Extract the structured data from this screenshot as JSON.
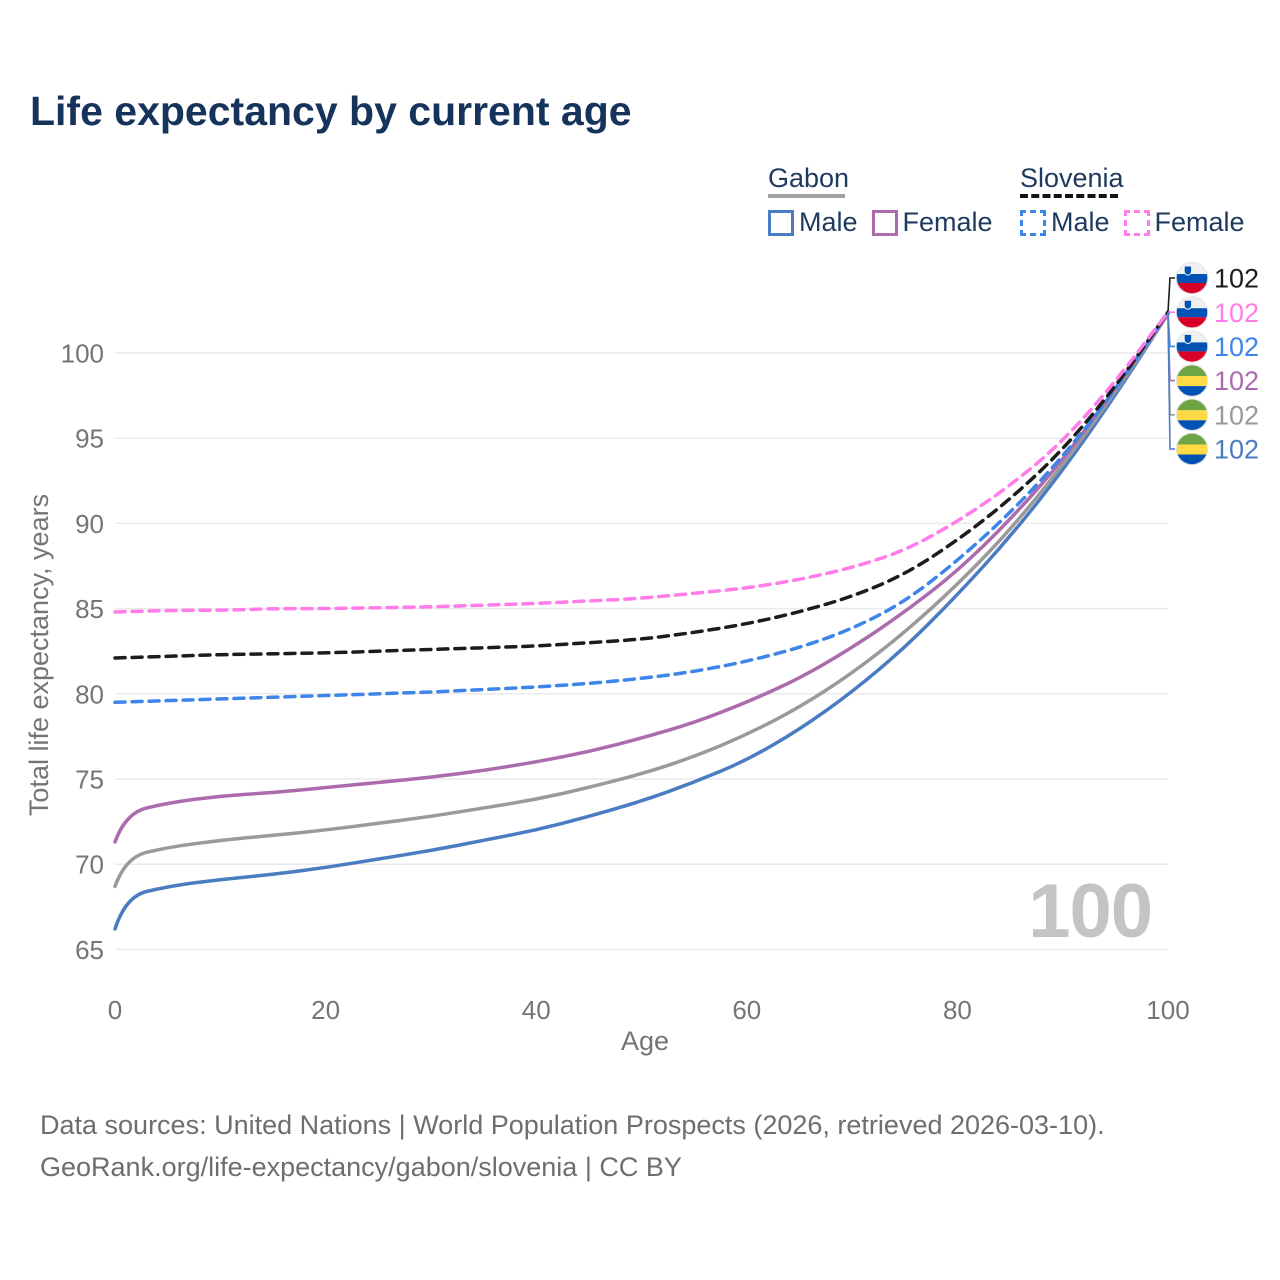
{
  "title": "Life expectancy by current age",
  "legend": {
    "gabon": {
      "title": "Gabon",
      "male": "Male",
      "female": "Female"
    },
    "slovenia": {
      "title": "Slovenia",
      "male": "Male",
      "female": "Female"
    }
  },
  "axes": {
    "x_label": "Age",
    "y_label": "Total life expectancy, years"
  },
  "watermark": "100",
  "footer": {
    "line1": "Data sources: United Nations | World Population Prospects (2026, retrieved 2026-03-10).",
    "line2": "GeoRank.org/life-expectancy/gabon/slovenia | CC BY"
  },
  "colors": {
    "title_navy": "#16335b",
    "axis_gray": "#757575",
    "gridline": "#eaeaea",
    "watermark_gray": "#c4c4c4",
    "gabon_male": "#4a7cc2",
    "gabon_female": "#ab6bad",
    "gabon_total": "#9a9a9a",
    "slovenia_male": "#3d85e9",
    "slovenia_female": "#ff7ce9",
    "slovenia_total": "#1c1c1c"
  },
  "chart_data": {
    "type": "line",
    "title": "Life expectancy by current age",
    "xlabel": "Age",
    "ylabel": "Total life expectancy, years",
    "x_ticks": [
      0,
      20,
      40,
      60,
      80,
      100
    ],
    "y_ticks": [
      65,
      70,
      75,
      80,
      85,
      90,
      95,
      100
    ],
    "xlim": [
      0,
      100
    ],
    "ylim": [
      63.5,
      103.5
    ],
    "grid": "horizontal",
    "legend_position": "top-right",
    "series": [
      {
        "name": "gabon_male",
        "country": "Gabon",
        "sex": "Male",
        "color": "#4a7cc2",
        "dashed": false,
        "points": [
          [
            0,
            66.2
          ],
          [
            1,
            68.1
          ],
          [
            5,
            68.7
          ],
          [
            10,
            69.1
          ],
          [
            15,
            69.4
          ],
          [
            20,
            69.8
          ],
          [
            25,
            70.3
          ],
          [
            30,
            70.8
          ],
          [
            35,
            71.4
          ],
          [
            40,
            72.0
          ],
          [
            45,
            72.8
          ],
          [
            50,
            73.7
          ],
          [
            55,
            74.8
          ],
          [
            60,
            76.1
          ],
          [
            65,
            77.9
          ],
          [
            70,
            80.1
          ],
          [
            75,
            82.7
          ],
          [
            80,
            85.8
          ],
          [
            85,
            89.2
          ],
          [
            90,
            93.1
          ],
          [
            95,
            97.5
          ],
          [
            100,
            102.3
          ]
        ]
      },
      {
        "name": "gabon_total",
        "country": "Gabon",
        "sex": "Both",
        "color": "#9a9a9a",
        "dashed": false,
        "points": [
          [
            0,
            68.7
          ],
          [
            1,
            70.4
          ],
          [
            5,
            71.0
          ],
          [
            10,
            71.4
          ],
          [
            15,
            71.7
          ],
          [
            20,
            72.0
          ],
          [
            25,
            72.4
          ],
          [
            30,
            72.8
          ],
          [
            35,
            73.3
          ],
          [
            40,
            73.8
          ],
          [
            45,
            74.5
          ],
          [
            50,
            75.3
          ],
          [
            55,
            76.3
          ],
          [
            60,
            77.6
          ],
          [
            65,
            79.2
          ],
          [
            70,
            81.2
          ],
          [
            75,
            83.6
          ],
          [
            80,
            86.4
          ],
          [
            85,
            89.6
          ],
          [
            90,
            93.4
          ],
          [
            95,
            97.7
          ],
          [
            100,
            102.3
          ]
        ]
      },
      {
        "name": "gabon_female",
        "country": "Gabon",
        "sex": "Female",
        "color": "#ab6bad",
        "dashed": false,
        "points": [
          [
            0,
            71.3
          ],
          [
            1,
            73.0
          ],
          [
            5,
            73.6
          ],
          [
            10,
            74.0
          ],
          [
            15,
            74.2
          ],
          [
            20,
            74.5
          ],
          [
            25,
            74.8
          ],
          [
            30,
            75.1
          ],
          [
            35,
            75.5
          ],
          [
            40,
            76.0
          ],
          [
            45,
            76.6
          ],
          [
            50,
            77.4
          ],
          [
            55,
            78.3
          ],
          [
            60,
            79.5
          ],
          [
            65,
            80.9
          ],
          [
            70,
            82.7
          ],
          [
            75,
            84.8
          ],
          [
            80,
            87.2
          ],
          [
            85,
            90.2
          ],
          [
            90,
            93.7
          ],
          [
            95,
            97.9
          ],
          [
            100,
            102.3
          ]
        ]
      },
      {
        "name": "slovenia_male",
        "country": "Slovenia",
        "sex": "Male",
        "color": "#3d85e9",
        "dashed": true,
        "points": [
          [
            0,
            79.5
          ],
          [
            5,
            79.6
          ],
          [
            10,
            79.7
          ],
          [
            15,
            79.8
          ],
          [
            20,
            79.9
          ],
          [
            25,
            80.0
          ],
          [
            30,
            80.1
          ],
          [
            35,
            80.25
          ],
          [
            40,
            80.4
          ],
          [
            45,
            80.6
          ],
          [
            50,
            80.9
          ],
          [
            55,
            81.3
          ],
          [
            60,
            81.9
          ],
          [
            65,
            82.7
          ],
          [
            70,
            83.8
          ],
          [
            75,
            85.4
          ],
          [
            80,
            87.8
          ],
          [
            85,
            90.6
          ],
          [
            90,
            93.9
          ],
          [
            95,
            97.8
          ],
          [
            100,
            102.4
          ]
        ]
      },
      {
        "name": "slovenia_total",
        "country": "Slovenia",
        "sex": "Both",
        "color": "#1c1c1c",
        "dashed": true,
        "points": [
          [
            0,
            82.1
          ],
          [
            5,
            82.2
          ],
          [
            10,
            82.3
          ],
          [
            15,
            82.35
          ],
          [
            20,
            82.4
          ],
          [
            25,
            82.5
          ],
          [
            30,
            82.6
          ],
          [
            35,
            82.7
          ],
          [
            40,
            82.8
          ],
          [
            45,
            83.0
          ],
          [
            50,
            83.2
          ],
          [
            55,
            83.6
          ],
          [
            60,
            84.1
          ],
          [
            65,
            84.8
          ],
          [
            70,
            85.7
          ],
          [
            75,
            87.0
          ],
          [
            80,
            89.0
          ],
          [
            85,
            91.4
          ],
          [
            90,
            94.3
          ],
          [
            95,
            98.0
          ],
          [
            100,
            102.4
          ]
        ]
      },
      {
        "name": "slovenia_female",
        "country": "Slovenia",
        "sex": "Female",
        "color": "#ff7ce9",
        "dashed": true,
        "points": [
          [
            0,
            84.8
          ],
          [
            5,
            84.9
          ],
          [
            10,
            84.9
          ],
          [
            15,
            85.0
          ],
          [
            20,
            85.0
          ],
          [
            25,
            85.05
          ],
          [
            30,
            85.1
          ],
          [
            35,
            85.2
          ],
          [
            40,
            85.3
          ],
          [
            45,
            85.45
          ],
          [
            50,
            85.6
          ],
          [
            55,
            85.9
          ],
          [
            60,
            86.2
          ],
          [
            65,
            86.7
          ],
          [
            70,
            87.4
          ],
          [
            75,
            88.4
          ],
          [
            80,
            90.1
          ],
          [
            85,
            92.2
          ],
          [
            90,
            94.8
          ],
          [
            95,
            98.3
          ],
          [
            100,
            102.4
          ]
        ]
      }
    ],
    "end_labels": [
      {
        "flag": "slovenia",
        "series": "slovenia_total",
        "value": "102",
        "color": "#1c1c1c"
      },
      {
        "flag": "slovenia",
        "series": "slovenia_female",
        "value": "102",
        "color": "#ff7ce9"
      },
      {
        "flag": "slovenia",
        "series": "slovenia_male",
        "value": "102",
        "color": "#3d85e9"
      },
      {
        "flag": "gabon",
        "series": "gabon_female",
        "value": "102",
        "color": "#ab6bad"
      },
      {
        "flag": "gabon",
        "series": "gabon_total",
        "value": "102",
        "color": "#9a9a9a"
      },
      {
        "flag": "gabon",
        "series": "gabon_male",
        "value": "102",
        "color": "#4a7cc2"
      }
    ]
  }
}
